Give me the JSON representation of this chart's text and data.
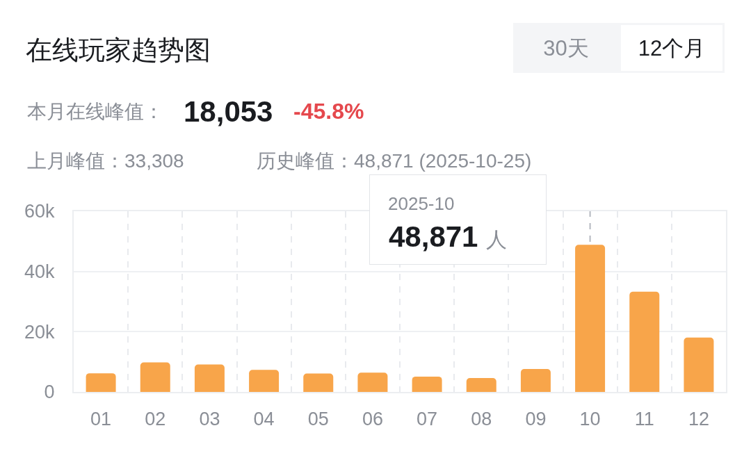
{
  "chart_data": {
    "type": "bar",
    "title": "在线玩家趋势图",
    "categories": [
      "01",
      "02",
      "03",
      "04",
      "05",
      "06",
      "07",
      "08",
      "09",
      "10",
      "11",
      "12"
    ],
    "values": [
      6200,
      9800,
      9100,
      7300,
      6100,
      6400,
      5100,
      4600,
      7600,
      48871,
      33308,
      18053
    ],
    "color": "#f8a54a",
    "ylim": [
      0,
      60000
    ],
    "yticks": [
      0,
      {
        "value": 20000,
        "label": "20k"
      },
      {
        "value": 40000,
        "label": "40k"
      },
      {
        "value": 60000,
        "label": "60k"
      }
    ],
    "grid": true,
    "ref_lines": [
      {
        "axis": "x",
        "value": "10",
        "color": "#b4b8c0",
        "line_style": "dashed"
      }
    ],
    "annotations": [
      "30天",
      "12个月",
      "本月在线峰值：",
      "18,053",
      "-45.8%",
      "上月峰值：33,308",
      "历史峰值：48,871 (2025-10-25)",
      "2025-10",
      "48,871 人"
    ]
  }
}
